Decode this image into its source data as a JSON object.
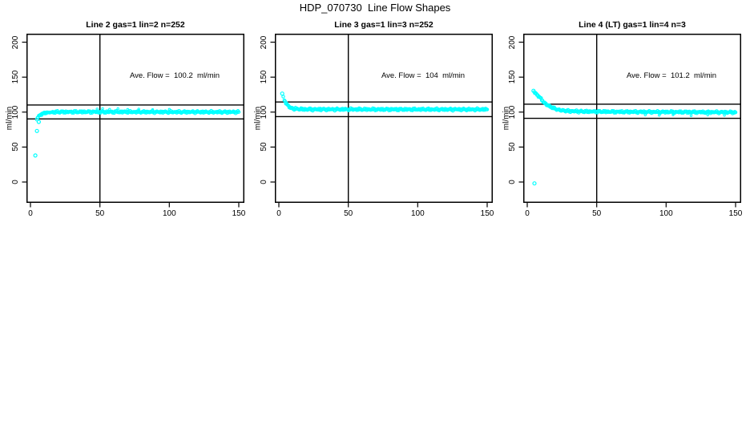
{
  "page_title": "HDP_070730  Line Flow Shapes",
  "colors": {
    "point": "#00ffff",
    "axis": "#000000",
    "background": "#ffffff"
  },
  "axes": {
    "ylabel": "ml/min",
    "xtick_labels": [
      "0",
      "50",
      "100",
      "150"
    ],
    "ytick_labels": [
      "0",
      "50",
      "100",
      "150",
      "200"
    ]
  },
  "chart_data": [
    {
      "type": "scatter",
      "title": "Line 2 gas=1 lin=2 n=252",
      "annotation": "Ave. Flow =  100.2  ml/min",
      "ave_flow_ml_min": 100.2,
      "n": 252,
      "ylabel": "ml/min",
      "xlim": [
        0,
        150
      ],
      "ylim": [
        -30,
        212
      ],
      "xticks": [
        0,
        50,
        100,
        150
      ],
      "yticks": [
        0,
        50,
        100,
        150,
        200
      ],
      "grid": false,
      "legend": "none",
      "marker": "open-circle",
      "color": "#00ffff",
      "vline_x": 50,
      "hlines": [
        110.2,
        90.2
      ],
      "outlier_points": [
        [
          3.5,
          38
        ],
        [
          4.7,
          73
        ],
        [
          6,
          86
        ]
      ],
      "curve": [
        [
          4.6,
          90
        ],
        [
          5.5,
          92.5
        ],
        [
          6.5,
          94.5
        ],
        [
          8,
          96.8
        ],
        [
          10,
          98.3
        ],
        [
          12,
          99.2
        ],
        [
          15,
          99.8
        ],
        [
          20,
          100.2
        ],
        [
          40,
          100.3
        ],
        [
          80,
          100.2
        ],
        [
          150,
          100.1
        ]
      ],
      "scatter_points": [
        [
          48,
          104.5
        ],
        [
          52,
          105
        ],
        [
          57,
          104
        ],
        [
          63,
          104.8
        ],
        [
          70,
          103.8
        ],
        [
          78,
          104.2
        ],
        [
          88,
          103.6
        ],
        [
          100,
          104
        ]
      ]
    },
    {
      "type": "scatter",
      "title": "Line 3 gas=1 lin=3 n=252",
      "annotation": "Ave. Flow =  104  ml/min",
      "ave_flow_ml_min": 104,
      "n": 252,
      "ylabel": "ml/min",
      "xlim": [
        0,
        150
      ],
      "ylim": [
        -30,
        212
      ],
      "xticks": [
        0,
        50,
        100,
        150
      ],
      "yticks": [
        0,
        50,
        100,
        150,
        200
      ],
      "grid": false,
      "legend": "none",
      "marker": "open-circle",
      "color": "#00ffff",
      "vline_x": 50,
      "hlines": [
        114.4,
        93.6
      ],
      "outlier_points": [
        [
          2.4,
          126.5
        ]
      ],
      "curve": [
        [
          3.2,
          121
        ],
        [
          4,
          117.5
        ],
        [
          5,
          113.5
        ],
        [
          6,
          110.8
        ],
        [
          7,
          108.8
        ],
        [
          8,
          107.3
        ],
        [
          9,
          106.2
        ],
        [
          10,
          105.4
        ],
        [
          12,
          104.6
        ],
        [
          15,
          104.1
        ],
        [
          20,
          103.9
        ],
        [
          60,
          103.9
        ],
        [
          150,
          103.8
        ]
      ],
      "scatter_points": [
        [
          12,
          107
        ],
        [
          16,
          106.3
        ],
        [
          22,
          106
        ],
        [
          30,
          105.6
        ]
      ]
    },
    {
      "type": "scatter",
      "title": "Line 4 (LT) gas=1 lin=4 n=3",
      "annotation": "Ave. Flow =  101.2  ml/min",
      "ave_flow_ml_min": 101.2,
      "n": 3,
      "ylabel": "ml/min",
      "xlim": [
        0,
        150
      ],
      "ylim": [
        -30,
        212
      ],
      "xticks": [
        0,
        50,
        100,
        150
      ],
      "yticks": [
        0,
        50,
        100,
        150,
        200
      ],
      "grid": false,
      "legend": "none",
      "marker": "open-circle",
      "color": "#00ffff",
      "vline_x": 50,
      "hlines": [
        111.3,
        91.1
      ],
      "outlier_points": [
        [
          4.5,
          130.5
        ],
        [
          5.2,
          -2
        ]
      ],
      "curve": [
        [
          5,
          128.5
        ],
        [
          6,
          127
        ],
        [
          7,
          125.2
        ],
        [
          8,
          123.2
        ],
        [
          9,
          121.2
        ],
        [
          10,
          119.2
        ],
        [
          12,
          113.5
        ],
        [
          14,
          110.5
        ],
        [
          16,
          108
        ],
        [
          18,
          106
        ],
        [
          20,
          104.6
        ],
        [
          23,
          103
        ],
        [
          26,
          102.2
        ],
        [
          30,
          101.5
        ],
        [
          36,
          101
        ],
        [
          45,
          100.8
        ],
        [
          60,
          100.5
        ],
        [
          90,
          100.2
        ],
        [
          120,
          100
        ],
        [
          150,
          99.7
        ]
      ],
      "scatter_points": [
        [
          85,
          96
        ],
        [
          95,
          95.5
        ],
        [
          105,
          96.2
        ],
        [
          118,
          95
        ],
        [
          130,
          96
        ],
        [
          142,
          95.5
        ]
      ]
    }
  ]
}
